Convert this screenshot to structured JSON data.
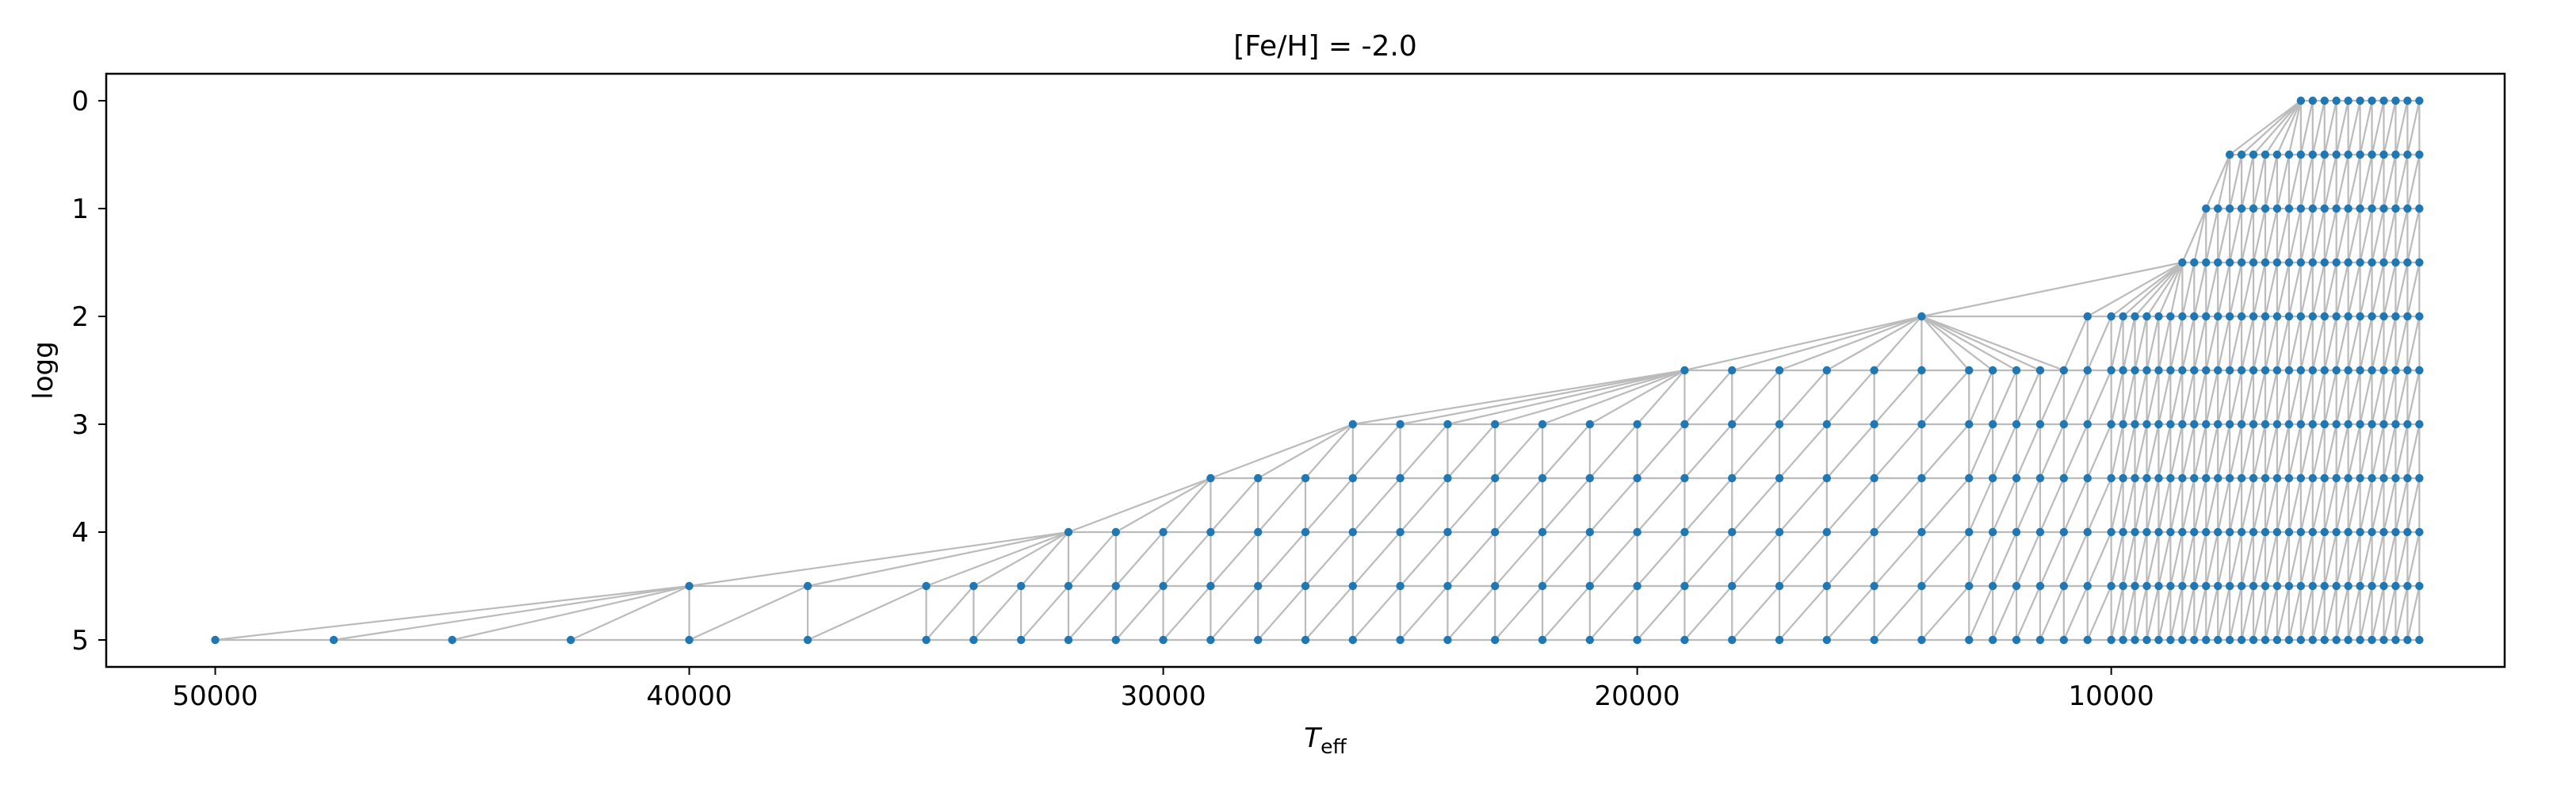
{
  "chart_data": {
    "type": "scatter",
    "title": "[Fe/H] = -2.0",
    "xlabel_main": "T",
    "xlabel_sub": "eff",
    "ylabel": "logg",
    "xlim": [
      52300,
      1700
    ],
    "ylim": [
      5.25,
      -0.25
    ],
    "x_ticks": [
      50000,
      40000,
      30000,
      20000,
      10000
    ],
    "y_ticks": [
      0,
      1,
      2,
      3,
      4,
      5
    ],
    "grid": false,
    "marker_color": "#1f77b4",
    "edge_color": "#bbbbbb",
    "triangulation": "delaunay",
    "rows": [
      {
        "logg": 0.0,
        "teff": [
          6000,
          5750,
          5500,
          5250,
          5000,
          4750,
          4500,
          4250,
          4000,
          3750,
          3500
        ]
      },
      {
        "logg": 0.5,
        "teff": [
          7500,
          7250,
          7000,
          6750,
          6500,
          6250,
          6000,
          5750,
          5500,
          5250,
          5000,
          4750,
          4500,
          4250,
          4000,
          3750,
          3500
        ]
      },
      {
        "logg": 1.0,
        "teff": [
          8000,
          7750,
          7500,
          7250,
          7000,
          6750,
          6500,
          6250,
          6000,
          5750,
          5500,
          5250,
          5000,
          4750,
          4500,
          4250,
          4000,
          3750,
          3500
        ]
      },
      {
        "logg": 1.5,
        "teff": [
          8500,
          8250,
          8000,
          7750,
          7500,
          7250,
          7000,
          6750,
          6500,
          6250,
          6000,
          5750,
          5500,
          5250,
          5000,
          4750,
          4500,
          4250,
          4000,
          3750,
          3500
        ]
      },
      {
        "logg": 2.0,
        "teff": [
          14000,
          10500,
          10000,
          9750,
          9500,
          9250,
          9000,
          8750,
          8500,
          8250,
          8000,
          7750,
          7500,
          7250,
          7000,
          6750,
          6500,
          6250,
          6000,
          5750,
          5500,
          5250,
          5000,
          4750,
          4500,
          4250,
          4000,
          3750,
          3500
        ]
      },
      {
        "logg": 2.5,
        "teff": [
          19000,
          18000,
          17000,
          16000,
          15000,
          14000,
          13000,
          12500,
          12000,
          11500,
          11000,
          10500,
          10000,
          9750,
          9500,
          9250,
          9000,
          8750,
          8500,
          8250,
          8000,
          7750,
          7500,
          7250,
          7000,
          6750,
          6500,
          6250,
          6000,
          5750,
          5500,
          5250,
          5000,
          4750,
          4500,
          4250,
          4000,
          3750,
          3500
        ]
      },
      {
        "logg": 3.0,
        "teff": [
          26000,
          25000,
          24000,
          23000,
          22000,
          21000,
          20000,
          19000,
          18000,
          17000,
          16000,
          15000,
          14000,
          13000,
          12500,
          12000,
          11500,
          11000,
          10500,
          10000,
          9750,
          9500,
          9250,
          9000,
          8750,
          8500,
          8250,
          8000,
          7750,
          7500,
          7250,
          7000,
          6750,
          6500,
          6250,
          6000,
          5750,
          5500,
          5250,
          5000,
          4750,
          4500,
          4250,
          4000,
          3750,
          3500
        ]
      },
      {
        "logg": 3.5,
        "teff": [
          29000,
          28000,
          27000,
          26000,
          25000,
          24000,
          23000,
          22000,
          21000,
          20000,
          19000,
          18000,
          17000,
          16000,
          15000,
          14000,
          13000,
          12500,
          12000,
          11500,
          11000,
          10500,
          10000,
          9750,
          9500,
          9250,
          9000,
          8750,
          8500,
          8250,
          8000,
          7750,
          7500,
          7250,
          7000,
          6750,
          6500,
          6250,
          6000,
          5750,
          5500,
          5250,
          5000,
          4750,
          4500,
          4250,
          4000,
          3750,
          3500
        ]
      },
      {
        "logg": 4.0,
        "teff": [
          32000,
          31000,
          30000,
          29000,
          28000,
          27000,
          26000,
          25000,
          24000,
          23000,
          22000,
          21000,
          20000,
          19000,
          18000,
          17000,
          16000,
          15000,
          14000,
          13000,
          12500,
          12000,
          11500,
          11000,
          10500,
          10000,
          9750,
          9500,
          9250,
          9000,
          8750,
          8500,
          8250,
          8000,
          7750,
          7500,
          7250,
          7000,
          6750,
          6500,
          6250,
          6000,
          5750,
          5500,
          5250,
          5000,
          4750,
          4500,
          4250,
          4000,
          3750,
          3500
        ]
      },
      {
        "logg": 4.5,
        "teff": [
          40000,
          37500,
          35000,
          34000,
          33000,
          32000,
          31000,
          30000,
          29000,
          28000,
          27000,
          26000,
          25000,
          24000,
          23000,
          22000,
          21000,
          20000,
          19000,
          18000,
          17000,
          16000,
          15000,
          14000,
          13000,
          12500,
          12000,
          11500,
          11000,
          10500,
          10000,
          9750,
          9500,
          9250,
          9000,
          8750,
          8500,
          8250,
          8000,
          7750,
          7500,
          7250,
          7000,
          6750,
          6500,
          6250,
          6000,
          5750,
          5500,
          5250,
          5000,
          4750,
          4500,
          4250,
          4000,
          3750,
          3500
        ]
      },
      {
        "logg": 5.0,
        "teff": [
          50000,
          47500,
          45000,
          42500,
          40000,
          37500,
          35000,
          34000,
          33000,
          32000,
          31000,
          30000,
          29000,
          28000,
          27000,
          26000,
          25000,
          24000,
          23000,
          22000,
          21000,
          20000,
          19000,
          18000,
          17000,
          16000,
          15000,
          14000,
          13000,
          12500,
          12000,
          11500,
          11000,
          10500,
          10000,
          9750,
          9500,
          9250,
          9000,
          8750,
          8500,
          8250,
          8000,
          7750,
          7500,
          7250,
          7000,
          6750,
          6500,
          6250,
          6000,
          5750,
          5500,
          5250,
          5000,
          4750,
          4500,
          4250,
          4000,
          3750,
          3500
        ]
      }
    ]
  }
}
